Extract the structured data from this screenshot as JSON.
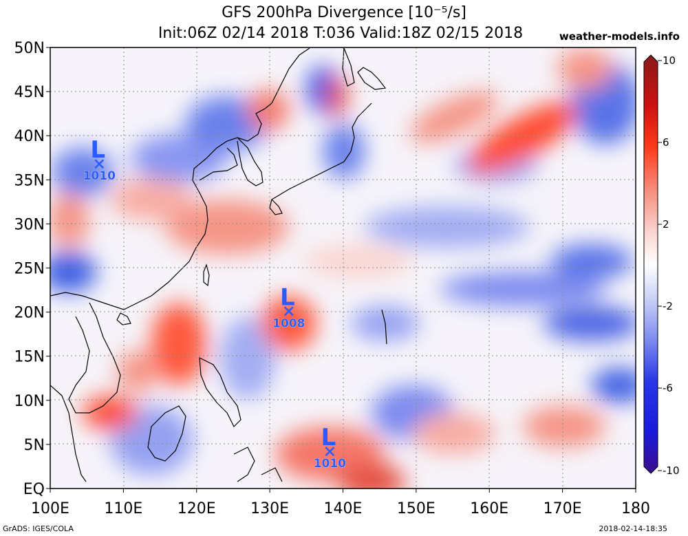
{
  "header": {
    "title": "GFS 200hPa Divergence [10⁻⁵/s]",
    "subtitle": "Init:06Z 02/14 2018 T:036 Valid:18Z 02/15 2018",
    "site": "weather-models.info"
  },
  "footer": {
    "credit": "GrADS: IGES/COLA",
    "timestamp": "2018-02-14-18:35"
  },
  "map": {
    "region": "Western North Pacific / East Asia",
    "lon_range": [
      100,
      180
    ],
    "lat_range": [
      0,
      50
    ],
    "lon_ticks": [
      "100E",
      "110E",
      "120E",
      "130E",
      "140E",
      "150E",
      "160E",
      "170E",
      "180"
    ],
    "lat_ticks": [
      "EQ",
      "5N",
      "10N",
      "15N",
      "20N",
      "25N",
      "30N",
      "35N",
      "40N",
      "45N",
      "50N"
    ]
  },
  "lows": [
    {
      "symbol": "L",
      "pressure": "1010",
      "lon": 106.7,
      "lat": 36.8
    },
    {
      "symbol": "L",
      "pressure": "1008",
      "lon": 132.6,
      "lat": 20.1
    },
    {
      "symbol": "L",
      "pressure": "1010",
      "lon": 138.2,
      "lat": 4.2
    }
  ],
  "colorbar": {
    "ticks": [
      "10",
      "6",
      "2",
      "-2",
      "-6",
      "-10"
    ],
    "stops": [
      "#8a1a1a",
      "#cc1111",
      "#ff3a1a",
      "#f58b7a",
      "#fbd3cd",
      "#ffffff",
      "#cbd3f6",
      "#7e8cf0",
      "#2a36e6",
      "#1a1adb",
      "#3a0c8e"
    ]
  },
  "colors": {
    "convergence": "#2a4fe0",
    "divergence": "#e23a2a",
    "low_marker": "#2a5bff"
  }
}
